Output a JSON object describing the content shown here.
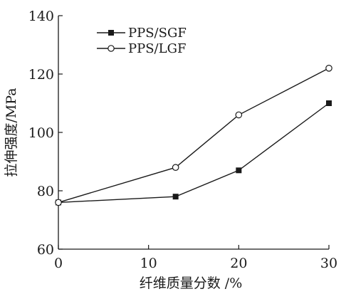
{
  "chart_data": {
    "type": "line",
    "title": "",
    "xlabel": "纤维质量分数 /%",
    "ylabel": "拉伸强度/MPa",
    "xlim": [
      0,
      30
    ],
    "ylim": [
      60,
      140
    ],
    "xticks": [
      0,
      10,
      20,
      30
    ],
    "yticks": [
      60,
      80,
      100,
      120,
      140
    ],
    "grid": false,
    "legend_position": "top-left",
    "series": [
      {
        "name": "PPS/SGF",
        "marker": "filled-square",
        "color": "#1a1a1a",
        "x": [
          0,
          13,
          20,
          30
        ],
        "y": [
          76,
          78,
          87,
          110
        ]
      },
      {
        "name": "PPS/LGF",
        "marker": "open-circle",
        "color": "#1a1a1a",
        "x": [
          0,
          13,
          20,
          30
        ],
        "y": [
          76,
          88,
          106,
          122
        ]
      }
    ]
  }
}
